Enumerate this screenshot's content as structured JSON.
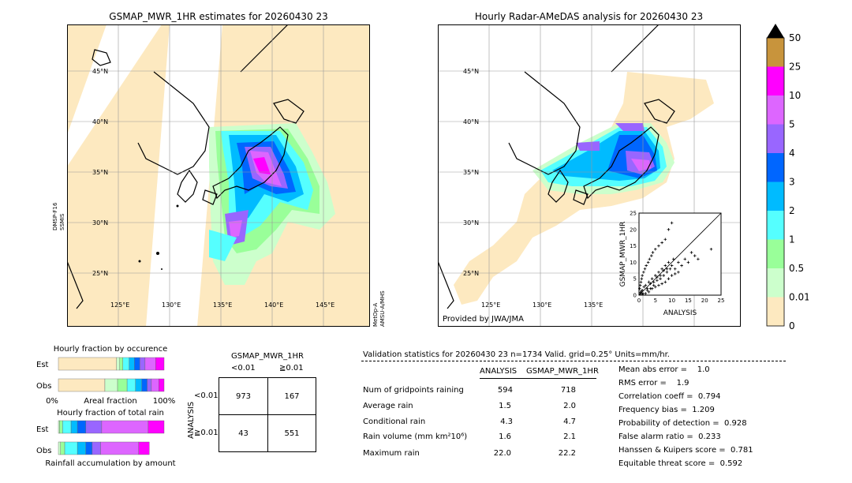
{
  "left_map": {
    "title": "GSMAP_MWR_1HR estimates for 20260430 23",
    "lat_labels": [
      "45°N",
      "40°N",
      "35°N",
      "30°N",
      "25°N"
    ],
    "lon_labels": [
      "125°E",
      "130°E",
      "135°E",
      "140°E",
      "145°E"
    ],
    "sat_label_left": "DMSP-F16\nSSMIS",
    "sat_label_left_l1": "DMSP-F16",
    "sat_label_left_l2": "SSMIS",
    "sat_label_right_l1": "MetOp-A",
    "sat_label_right_l2": "AMSU-A/MHS",
    "colors": {
      "land_bg": "#fde9c0",
      "no_data": "#ffffff"
    }
  },
  "right_map": {
    "title": "Hourly Radar-AMeDAS analysis for 20260430 23",
    "lat_labels": [
      "45°N",
      "40°N",
      "35°N",
      "30°N",
      "25°N"
    ],
    "lon_labels": [
      "125°E",
      "130°E",
      "135°E"
    ],
    "credit": "Provided by JWA/JMA"
  },
  "colorbar": {
    "levels": [
      "50",
      "25",
      "10",
      "5",
      "4",
      "3",
      "2",
      "1",
      "0.5",
      "0.01",
      "0"
    ],
    "colors": [
      "#c8943c",
      "#ff00ff",
      "#dd66ff",
      "#9966ff",
      "#0066ff",
      "#00bbff",
      "#55ffff",
      "#99ff99",
      "#ccffcc",
      "#fde9c0"
    ],
    "over_color": "#000000"
  },
  "chart_data": [
    {
      "type": "scatter",
      "name": "inset",
      "xlabel": "ANALYSIS",
      "ylabel": "GSMAP_MWR_1HR",
      "xlim": [
        0,
        25
      ],
      "ylim": [
        0,
        25
      ],
      "x_ticks": [
        "0",
        "5",
        "10",
        "15",
        "20",
        "25"
      ],
      "y_ticks": [
        "0",
        "5",
        "10",
        "15",
        "20",
        "25"
      ],
      "diagonal": true,
      "points": [
        [
          0.5,
          0.8
        ],
        [
          1,
          1.5
        ],
        [
          1.2,
          0.5
        ],
        [
          2,
          3
        ],
        [
          2.5,
          1.5
        ],
        [
          3,
          4
        ],
        [
          3.5,
          2
        ],
        [
          4,
          5
        ],
        [
          4.5,
          3
        ],
        [
          5,
          6
        ],
        [
          5.5,
          4.5
        ],
        [
          6,
          7
        ],
        [
          6.5,
          5
        ],
        [
          7,
          8
        ],
        [
          7.5,
          6
        ],
        [
          8,
          9
        ],
        [
          8.5,
          7
        ],
        [
          9,
          10
        ],
        [
          9.5,
          8
        ],
        [
          10,
          9
        ],
        [
          10.5,
          11
        ],
        [
          11,
          8
        ],
        [
          12,
          10
        ],
        [
          13,
          9
        ],
        [
          14,
          11
        ],
        [
          15,
          10
        ],
        [
          16,
          13
        ],
        [
          17,
          12
        ],
        [
          18,
          11
        ],
        [
          22,
          14
        ],
        [
          0.2,
          2
        ],
        [
          0.4,
          3
        ],
        [
          0.6,
          4
        ],
        [
          0.8,
          5
        ],
        [
          1,
          6
        ],
        [
          1.4,
          7
        ],
        [
          1.8,
          8
        ],
        [
          2.2,
          9
        ],
        [
          2.8,
          10
        ],
        [
          3.2,
          11
        ],
        [
          3.8,
          12
        ],
        [
          4.2,
          13
        ],
        [
          5,
          14
        ],
        [
          6,
          15
        ],
        [
          7,
          16
        ],
        [
          8,
          17
        ],
        [
          9,
          20
        ],
        [
          10,
          22
        ],
        [
          3,
          1
        ],
        [
          4,
          2
        ],
        [
          5,
          2.5
        ],
        [
          6,
          3
        ],
        [
          7,
          3.5
        ],
        [
          8,
          4
        ],
        [
          9,
          5
        ],
        [
          10,
          6
        ],
        [
          11,
          6.5
        ],
        [
          12,
          7
        ],
        [
          2,
          0.5
        ],
        [
          1,
          0.3
        ],
        [
          0.3,
          0.3
        ],
        [
          0.7,
          1.2
        ],
        [
          1.5,
          2.5
        ],
        [
          2.5,
          2
        ],
        [
          3.5,
          3.5
        ],
        [
          4.5,
          4
        ],
        [
          5.5,
          5.5
        ],
        [
          6.5,
          6
        ],
        [
          7.5,
          7.5
        ],
        [
          8.5,
          8
        ]
      ]
    },
    {
      "type": "bar",
      "name": "Hourly fraction by occurence",
      "title": "Hourly fraction by occurence",
      "categories": [
        "Est",
        "Obs"
      ],
      "xlabel": "Areal fraction",
      "x_tick_left": "0%",
      "x_tick_right": "100%",
      "series": [
        {
          "color": "#fde9c0",
          "values": [
            0.55,
            0.44
          ]
        },
        {
          "color": "#ccffcc",
          "values": [
            0.03,
            0.12
          ]
        },
        {
          "color": "#99ff99",
          "values": [
            0.03,
            0.09
          ]
        },
        {
          "color": "#55ffff",
          "values": [
            0.06,
            0.08
          ]
        },
        {
          "color": "#00bbff",
          "values": [
            0.05,
            0.06
          ]
        },
        {
          "color": "#0066ff",
          "values": [
            0.05,
            0.05
          ]
        },
        {
          "color": "#9966ff",
          "values": [
            0.05,
            0.04
          ]
        },
        {
          "color": "#dd66ff",
          "values": [
            0.1,
            0.07
          ]
        },
        {
          "color": "#ff00ff",
          "values": [
            0.08,
            0.05
          ]
        }
      ]
    },
    {
      "type": "bar",
      "name": "Hourly fraction of total rain",
      "title": "Hourly fraction of total rain",
      "categories": [
        "Est",
        "Obs"
      ],
      "xlabel": "Rainfall accumulation by amount",
      "series": [
        {
          "color": "#ccffcc",
          "values": [
            0.01,
            0.02
          ]
        },
        {
          "color": "#99ff99",
          "values": [
            0.03,
            0.04
          ]
        },
        {
          "color": "#55ffff",
          "values": [
            0.08,
            0.12
          ]
        },
        {
          "color": "#00bbff",
          "values": [
            0.06,
            0.08
          ]
        },
        {
          "color": "#0066ff",
          "values": [
            0.08,
            0.06
          ]
        },
        {
          "color": "#9966ff",
          "values": [
            0.15,
            0.08
          ]
        },
        {
          "color": "#dd66ff",
          "values": [
            0.44,
            0.36
          ]
        },
        {
          "color": "#ff00ff",
          "values": [
            0.15,
            0.1
          ]
        }
      ]
    }
  ],
  "contingency": {
    "title": "GSMAP_MWR_1HR",
    "col_labels": [
      "<0.01",
      "≧0.01"
    ],
    "row_labels": [
      "<0.01",
      "≧0.01"
    ],
    "axis_label": "ANALYSIS",
    "cells": [
      [
        "973",
        "167"
      ],
      [
        "43",
        "551"
      ]
    ]
  },
  "validation": {
    "header": "Validation statistics for 20260430 23  n=1734 Valid. grid=0.25° Units=mm/hr.",
    "col_analysis": "ANALYSIS",
    "col_gsmap": "GSMAP_MWR_1HR",
    "rows": [
      {
        "label": "Num of gridpoints raining",
        "a": "594",
        "g": "718"
      },
      {
        "label": "Average rain",
        "a": "1.5",
        "g": "2.0"
      },
      {
        "label": "Conditional rain",
        "a": "4.3",
        "g": "4.7"
      },
      {
        "label": "Rain volume (mm km²10⁶)",
        "a": "1.6",
        "g": "2.1"
      },
      {
        "label": "Maximum rain",
        "a": "22.0",
        "g": "22.2"
      }
    ],
    "scores": [
      "Mean abs error =    1.0",
      "RMS error =    1.9",
      "Correlation coeff =  0.794",
      "Frequency bias =  1.209",
      "Probability of detection =  0.928",
      "False alarm ratio =  0.233",
      "Hanssen & Kuipers score =  0.781",
      "Equitable threat score =  0.592"
    ]
  }
}
